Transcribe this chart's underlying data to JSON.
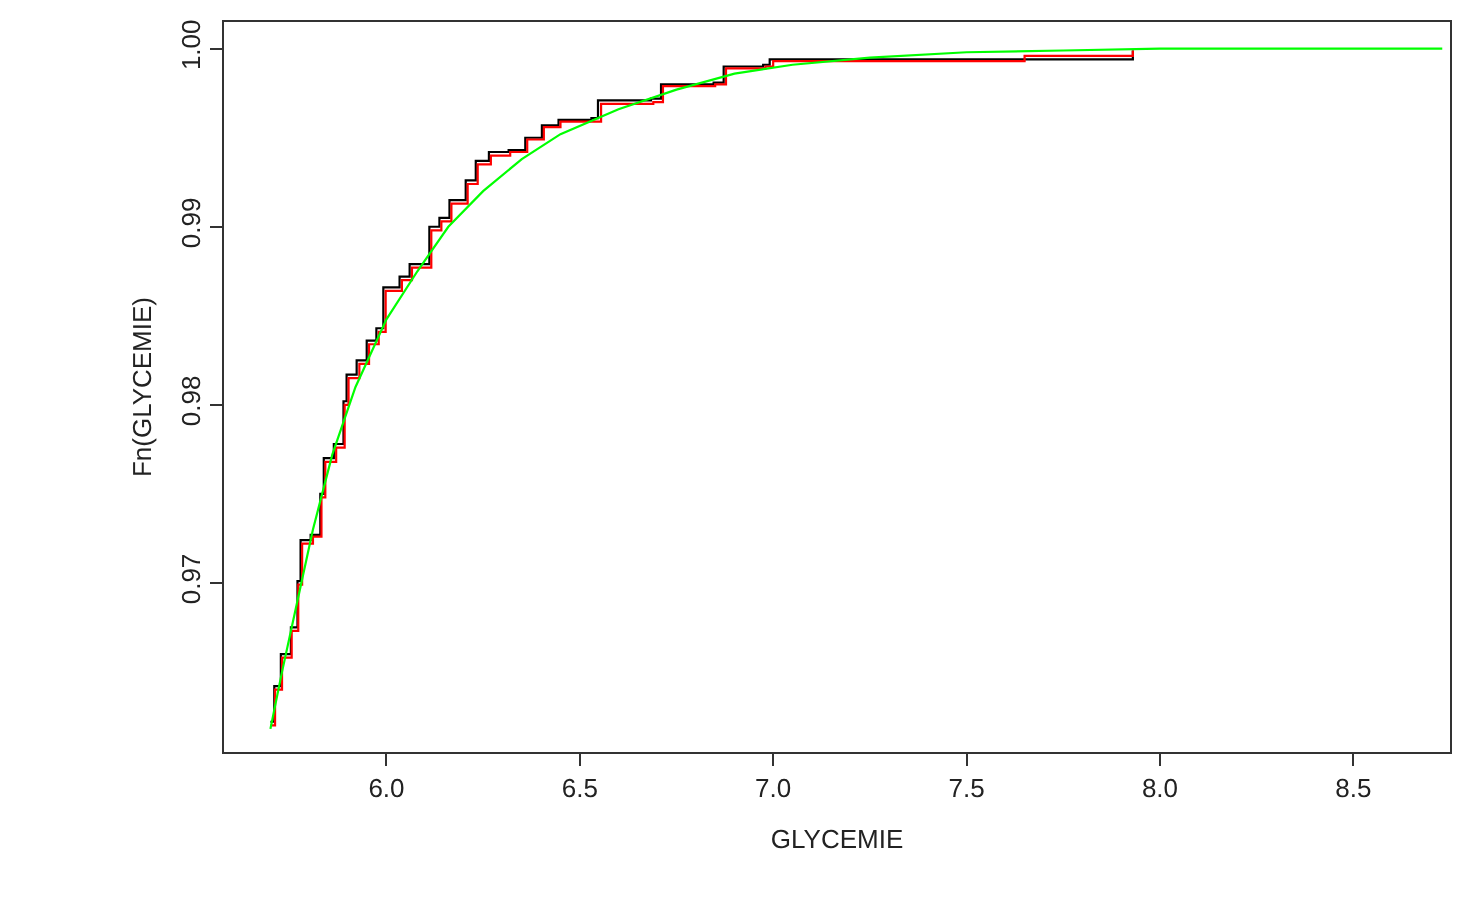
{
  "chart_data": {
    "type": "step",
    "xlabel": "GLYCEMIE",
    "ylabel": "Fn(GLYCEMIE)",
    "xlim": [
      5.58,
      8.75
    ],
    "ylim": [
      0.9605,
      1.0015
    ],
    "xticks": [
      {
        "value": 6,
        "label": "6.0"
      },
      6.5,
      {
        "value": 7,
        "label": "7.0"
      },
      7.5,
      {
        "value": 8,
        "label": "8.0"
      },
      8.5
    ],
    "yticks": [
      0.97,
      0.98,
      0.99,
      {
        "value": 1,
        "label": "1.00"
      }
    ],
    "marker": "none",
    "line_style": "solid",
    "series": [
      {
        "color": "#000000",
        "x": [
          5.7,
          5.71,
          5.727,
          5.753,
          5.77,
          5.778,
          5.804,
          5.829,
          5.838,
          5.864,
          5.889,
          5.897,
          5.923,
          5.949,
          5.974,
          5.992,
          6.034,
          6.06,
          6.111,
          6.137,
          6.163,
          6.205,
          6.231,
          6.265,
          6.316,
          6.359,
          6.402,
          6.445,
          6.53,
          6.547,
          6.684,
          6.71,
          6.846,
          6.872,
          6.974,
          6.991,
          7.89,
          7.93
        ],
        "values": [
          0.9622,
          0.9642,
          0.966,
          0.9675,
          0.9701,
          0.9724,
          0.9727,
          0.975,
          0.977,
          0.9778,
          0.9802,
          0.9817,
          0.9825,
          0.9836,
          0.9843,
          0.9866,
          0.9872,
          0.9879,
          0.99,
          0.9905,
          0.9915,
          0.9926,
          0.9937,
          0.9942,
          0.9943,
          0.995,
          0.9957,
          0.996,
          0.9961,
          0.9971,
          0.9972,
          0.998,
          0.9981,
          0.999,
          0.9991,
          0.9994,
          0.9994,
          0.9999
        ]
      },
      {
        "color": "#ff0000",
        "x": [
          5.7,
          5.712,
          5.73,
          5.755,
          5.772,
          5.782,
          5.81,
          5.832,
          5.842,
          5.87,
          5.892,
          5.902,
          5.93,
          5.955,
          5.98,
          5.998,
          6.04,
          6.066,
          6.116,
          6.142,
          6.168,
          6.21,
          6.236,
          6.27,
          6.32,
          6.364,
          6.407,
          6.45,
          6.555,
          6.69,
          6.715,
          6.85,
          6.878,
          6.98,
          7.0,
          7.65,
          7.93
        ],
        "values": [
          0.962,
          0.964,
          0.9658,
          0.9673,
          0.9699,
          0.9722,
          0.9726,
          0.9748,
          0.9768,
          0.9776,
          0.98,
          0.9815,
          0.9823,
          0.9834,
          0.9841,
          0.9864,
          0.987,
          0.9877,
          0.9898,
          0.9903,
          0.9913,
          0.9924,
          0.9935,
          0.994,
          0.9942,
          0.9949,
          0.9956,
          0.9959,
          0.9969,
          0.997,
          0.9979,
          0.998,
          0.9989,
          0.999,
          0.9993,
          0.9996,
          0.9999
        ]
      },
      {
        "color": "#00ff00",
        "type": "line",
        "x": [
          5.7,
          5.73,
          5.77,
          5.81,
          5.86,
          5.92,
          6.0,
          6.08,
          6.16,
          6.25,
          6.35,
          6.45,
          6.6,
          6.75,
          6.9,
          7.05,
          7.25,
          7.5,
          7.75,
          8.0,
          8.4,
          8.73
        ],
        "values": [
          0.9618,
          0.965,
          0.969,
          0.973,
          0.9772,
          0.981,
          0.9848,
          0.9875,
          0.99,
          0.992,
          0.9938,
          0.9952,
          0.9966,
          0.9977,
          0.9986,
          0.9991,
          0.9995,
          0.9998,
          0.9999,
          1.0,
          1.0,
          1.0
        ]
      }
    ]
  }
}
